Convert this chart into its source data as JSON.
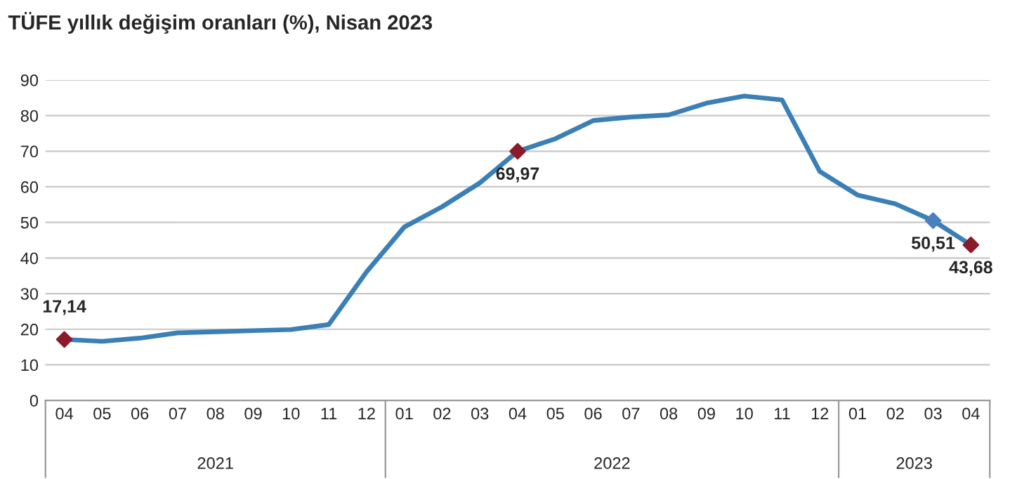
{
  "chart_data": {
    "type": "line",
    "title": "TÜFE yıllık değişim oranları (%), Nisan 2023",
    "categories": [
      "04",
      "05",
      "06",
      "07",
      "08",
      "09",
      "10",
      "11",
      "12",
      "01",
      "02",
      "03",
      "04",
      "05",
      "06",
      "07",
      "08",
      "09",
      "10",
      "11",
      "12",
      "01",
      "02",
      "03",
      "04"
    ],
    "annotations": [
      "2021",
      "2022",
      "2023"
    ],
    "series": [
      {
        "color": "#3a7fb5",
        "values": [
          17.14,
          16.6,
          17.5,
          19.0,
          19.3,
          19.6,
          19.9,
          21.3,
          36.1,
          48.7,
          54.4,
          61.1,
          69.97,
          73.5,
          78.6,
          79.6,
          80.2,
          83.5,
          85.5,
          84.4,
          64.3,
          57.7,
          55.2,
          50.51,
          43.68
        ]
      },
      {
        "type": "scatter",
        "marker": "diamond",
        "colors": [
          "#8b1a2b",
          null,
          null,
          null,
          null,
          null,
          null,
          null,
          null,
          null,
          null,
          null,
          "#8b1a2b",
          null,
          null,
          null,
          null,
          null,
          null,
          null,
          null,
          null,
          null,
          "#4a7fc0",
          "#8b1a2b"
        ],
        "values": [
          17.14,
          null,
          null,
          null,
          null,
          null,
          null,
          null,
          null,
          null,
          null,
          null,
          69.97,
          null,
          null,
          null,
          null,
          null,
          null,
          null,
          null,
          null,
          null,
          50.51,
          43.68
        ],
        "value_labels": [
          "17,14",
          null,
          null,
          null,
          null,
          null,
          null,
          null,
          null,
          null,
          null,
          null,
          "69,97",
          null,
          null,
          null,
          null,
          null,
          null,
          null,
          null,
          null,
          null,
          "50,51",
          "43,68"
        ]
      }
    ],
    "ylim": [
      0,
      90
    ],
    "yticks": [
      0,
      10,
      20,
      30,
      40,
      50,
      60,
      70,
      80,
      90
    ],
    "grid": "y",
    "legend": false
  }
}
